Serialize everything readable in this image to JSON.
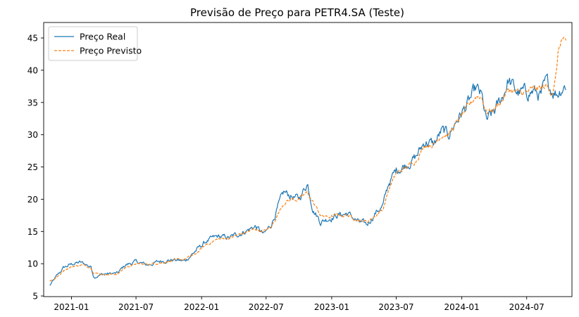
{
  "chart_data": {
    "type": "line",
    "title": "Previsão de Preço para PETR4.SA (Teste)",
    "xlabel": "",
    "ylabel": "",
    "x_start": "2020-11-01",
    "x_end": "2024-10-20",
    "xlim": [
      "2020-10-15",
      "2024-11-05"
    ],
    "ylim": [
      4.9,
      47.4
    ],
    "x_ticks": [
      {
        "date": "2021-01-01",
        "label": "2021-01"
      },
      {
        "date": "2021-07-01",
        "label": "2021-07"
      },
      {
        "date": "2022-01-01",
        "label": "2022-01"
      },
      {
        "date": "2022-07-01",
        "label": "2022-07"
      },
      {
        "date": "2023-01-01",
        "label": "2023-01"
      },
      {
        "date": "2023-07-01",
        "label": "2023-07"
      },
      {
        "date": "2024-01-01",
        "label": "2024-01"
      },
      {
        "date": "2024-07-01",
        "label": "2024-07"
      }
    ],
    "y_ticks": [
      5,
      10,
      15,
      20,
      25,
      30,
      35,
      40,
      45
    ],
    "legend": {
      "position": "top-left"
    },
    "series": [
      {
        "name": "Preço Real",
        "color": "#1f77b4",
        "style": "solid",
        "keypoints": [
          [
            "2020-11-01",
            6.6
          ],
          [
            "2020-11-20",
            8.0
          ],
          [
            "2020-12-10",
            9.4
          ],
          [
            "2021-01-05",
            10.0
          ],
          [
            "2021-01-25",
            10.2
          ],
          [
            "2021-02-10",
            9.9
          ],
          [
            "2021-02-25",
            9.5
          ],
          [
            "2021-03-05",
            8.0
          ],
          [
            "2021-04-01",
            8.4
          ],
          [
            "2021-05-10",
            8.5
          ],
          [
            "2021-06-01",
            9.8
          ],
          [
            "2021-07-01",
            10.3
          ],
          [
            "2021-08-01",
            9.8
          ],
          [
            "2021-09-15",
            10.5
          ],
          [
            "2021-10-15",
            10.6
          ],
          [
            "2021-11-15",
            10.4
          ],
          [
            "2021-12-15",
            12.0
          ],
          [
            "2022-01-15",
            13.5
          ],
          [
            "2022-02-15",
            14.2
          ],
          [
            "2022-03-20",
            14.0
          ],
          [
            "2022-05-01",
            15.0
          ],
          [
            "2022-06-01",
            15.8
          ],
          [
            "2022-06-25",
            14.5
          ],
          [
            "2022-07-15",
            16.0
          ],
          [
            "2022-08-01",
            18.5
          ],
          [
            "2022-08-20",
            21.0
          ],
          [
            "2022-09-10",
            20.5
          ],
          [
            "2022-10-01",
            20.0
          ],
          [
            "2022-10-25",
            22.5
          ],
          [
            "2022-11-10",
            18.5
          ],
          [
            "2022-12-01",
            16.5
          ],
          [
            "2022-12-20",
            17.0
          ],
          [
            "2023-01-15",
            17.5
          ],
          [
            "2023-02-15",
            17.8
          ],
          [
            "2023-03-15",
            16.5
          ],
          [
            "2023-04-10",
            16.0
          ],
          [
            "2023-05-05",
            18.0
          ],
          [
            "2023-05-25",
            19.0
          ],
          [
            "2023-06-10",
            22.5
          ],
          [
            "2023-07-01",
            24.5
          ],
          [
            "2023-08-01",
            25.5
          ],
          [
            "2023-08-25",
            26.5
          ],
          [
            "2023-09-20",
            29.0
          ],
          [
            "2023-10-15",
            28.5
          ],
          [
            "2023-11-05",
            30.5
          ],
          [
            "2023-11-25",
            30.0
          ],
          [
            "2023-12-20",
            32.5
          ],
          [
            "2024-01-15",
            34.5
          ],
          [
            "2024-02-10",
            37.0
          ],
          [
            "2024-02-25",
            36.0
          ],
          [
            "2024-03-10",
            32.0
          ],
          [
            "2024-04-01",
            33.5
          ],
          [
            "2024-04-25",
            36.0
          ],
          [
            "2024-05-10",
            38.5
          ],
          [
            "2024-06-05",
            36.5
          ],
          [
            "2024-07-01",
            36.5
          ],
          [
            "2024-07-20",
            36.8
          ],
          [
            "2024-08-10",
            36.0
          ],
          [
            "2024-08-25",
            38.0
          ],
          [
            "2024-09-10",
            37.0
          ],
          [
            "2024-09-25",
            36.5
          ],
          [
            "2024-10-10",
            37.5
          ],
          [
            "2024-10-20",
            37.8
          ]
        ]
      },
      {
        "name": "Preço Previsto",
        "color": "#ff7f0e",
        "style": "dashed",
        "keypoints": [
          [
            "2020-11-01",
            7.3
          ],
          [
            "2020-11-20",
            7.8
          ],
          [
            "2020-12-10",
            9.0
          ],
          [
            "2021-01-05",
            9.6
          ],
          [
            "2021-01-25",
            9.8
          ],
          [
            "2021-02-10",
            9.7
          ],
          [
            "2021-02-25",
            9.4
          ],
          [
            "2021-03-05",
            8.6
          ],
          [
            "2021-04-01",
            8.3
          ],
          [
            "2021-05-10",
            8.4
          ],
          [
            "2021-06-01",
            9.4
          ],
          [
            "2021-07-01",
            10.0
          ],
          [
            "2021-08-01",
            9.9
          ],
          [
            "2021-09-15",
            10.2
          ],
          [
            "2021-10-15",
            10.5
          ],
          [
            "2021-11-15",
            10.7
          ],
          [
            "2021-12-15",
            11.5
          ],
          [
            "2022-01-15",
            13.0
          ],
          [
            "2022-02-15",
            13.8
          ],
          [
            "2022-03-20",
            14.0
          ],
          [
            "2022-05-01",
            14.8
          ],
          [
            "2022-06-01",
            15.4
          ],
          [
            "2022-06-25",
            15.0
          ],
          [
            "2022-07-15",
            15.6
          ],
          [
            "2022-08-01",
            17.5
          ],
          [
            "2022-08-20",
            19.5
          ],
          [
            "2022-09-10",
            20.0
          ],
          [
            "2022-10-01",
            20.0
          ],
          [
            "2022-10-25",
            21.0
          ],
          [
            "2022-11-10",
            19.5
          ],
          [
            "2022-12-01",
            17.5
          ],
          [
            "2022-12-20",
            17.2
          ],
          [
            "2023-01-15",
            17.5
          ],
          [
            "2023-02-15",
            17.5
          ],
          [
            "2023-03-15",
            16.8
          ],
          [
            "2023-04-10",
            16.5
          ],
          [
            "2023-05-05",
            17.5
          ],
          [
            "2023-05-25",
            18.5
          ],
          [
            "2023-06-10",
            21.5
          ],
          [
            "2023-07-01",
            24.0
          ],
          [
            "2023-08-01",
            25.0
          ],
          [
            "2023-08-25",
            26.0
          ],
          [
            "2023-09-20",
            28.5
          ],
          [
            "2023-10-15",
            28.5
          ],
          [
            "2023-11-05",
            30.0
          ],
          [
            "2023-11-25",
            30.0
          ],
          [
            "2023-12-20",
            32.0
          ],
          [
            "2024-01-15",
            34.0
          ],
          [
            "2024-02-10",
            36.0
          ],
          [
            "2024-02-25",
            36.0
          ],
          [
            "2024-03-10",
            33.5
          ],
          [
            "2024-04-01",
            34.0
          ],
          [
            "2024-04-25",
            35.5
          ],
          [
            "2024-05-10",
            37.0
          ],
          [
            "2024-06-05",
            36.5
          ],
          [
            "2024-07-01",
            36.5
          ],
          [
            "2024-07-20",
            37.0
          ],
          [
            "2024-08-10",
            37.2
          ],
          [
            "2024-08-25",
            37.5
          ],
          [
            "2024-09-10",
            36.5
          ],
          [
            "2024-09-20",
            38.5
          ],
          [
            "2024-09-28",
            43.0
          ],
          [
            "2024-10-05",
            44.5
          ],
          [
            "2024-10-12",
            45.0
          ],
          [
            "2024-10-20",
            43.5
          ]
        ]
      }
    ]
  }
}
